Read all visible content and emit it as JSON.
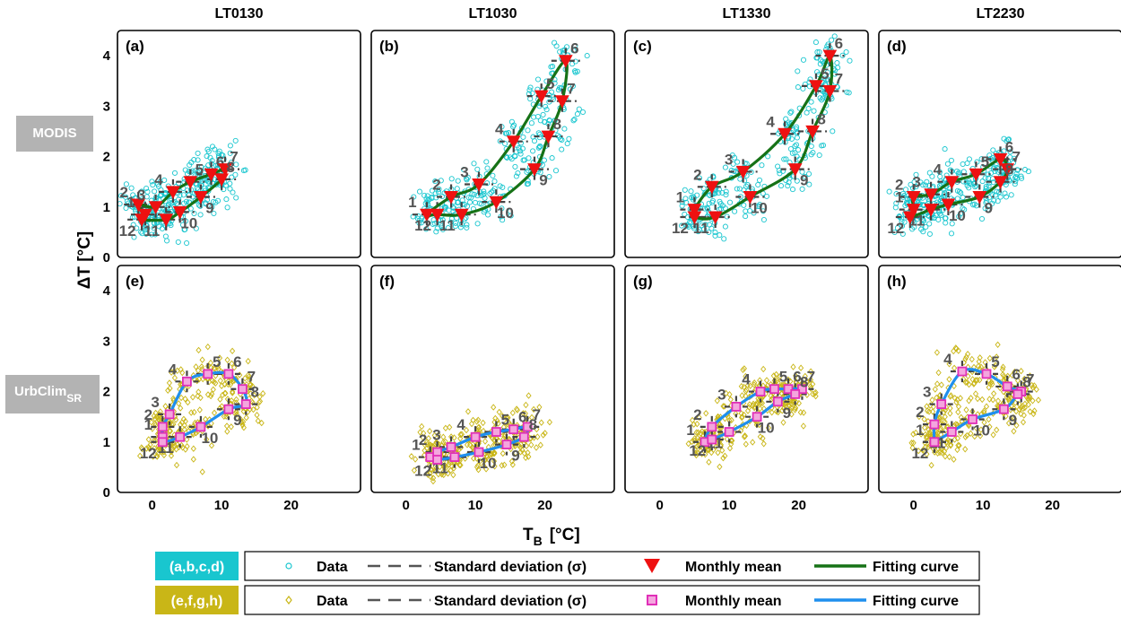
{
  "figure": {
    "column_titles": [
      "LT0130",
      "LT1030",
      "LT1330",
      "LT2230"
    ],
    "row_labels": [
      "MODIS",
      "UrbClim",
      "SR"
    ],
    "xlabel": "T",
    "xlabel_sub": "B",
    "xlabel_unit": "[°C]",
    "ylabel": "ΔT  [°C]",
    "x_ticks": [
      0,
      10,
      20
    ],
    "y_ticks": [
      0,
      1,
      2,
      3,
      4
    ],
    "panel_labels": [
      "(a)",
      "(b)",
      "(c)",
      "(d)",
      "(e)",
      "(f)",
      "(g)",
      "(h)"
    ]
  },
  "legend": {
    "rows": [
      {
        "group": "(a,b,c,d)",
        "group_color": "#19c6cf",
        "data": "Data",
        "std": "Standard deviation (σ)",
        "mean": "Monthly mean",
        "fit": "Fitting curve",
        "fit_color": "#167216",
        "mean_color": "#ee1111",
        "mean_marker": "triangle-down",
        "data_marker": "circle"
      },
      {
        "group": "(e,f,g,h)",
        "group_color": "#c9b617",
        "data": "Data",
        "std": "Standard deviation (σ)",
        "mean": "Monthly mean",
        "fit": "Fitting curve",
        "fit_color": "#1f8fee",
        "mean_color": "#f06dd1",
        "mean_marker": "square",
        "data_marker": "diamond"
      }
    ]
  },
  "chart_data": [
    {
      "panel": "(a)",
      "type": "scatter",
      "title": "LT0130",
      "source": "MODIS",
      "xlim": [
        -5,
        30
      ],
      "ylim": [
        0,
        4.5
      ],
      "monthly_mean": [
        {
          "month": 1,
          "x": -1.0,
          "y": 0.85
        },
        {
          "month": 2,
          "x": -2.0,
          "y": 1.05
        },
        {
          "month": 3,
          "x": 0.5,
          "y": 1.0
        },
        {
          "month": 4,
          "x": 3.0,
          "y": 1.3
        },
        {
          "month": 5,
          "x": 5.5,
          "y": 1.5
        },
        {
          "month": 6,
          "x": 8.5,
          "y": 1.65
        },
        {
          "month": 7,
          "x": 10.5,
          "y": 1.75
        },
        {
          "month": 8,
          "x": 10.0,
          "y": 1.55
        },
        {
          "month": 9,
          "x": 7.0,
          "y": 1.2
        },
        {
          "month": 10,
          "x": 4.0,
          "y": 0.9
        },
        {
          "month": 11,
          "x": 2.0,
          "y": 0.75
        },
        {
          "month": 12,
          "x": -1.5,
          "y": 0.75
        }
      ]
    },
    {
      "panel": "(b)",
      "type": "scatter",
      "title": "LT1030",
      "source": "MODIS",
      "xlim": [
        -5,
        30
      ],
      "ylim": [
        0,
        4.5
      ],
      "monthly_mean": [
        {
          "month": 1,
          "x": 3.0,
          "y": 0.85
        },
        {
          "month": 2,
          "x": 6.5,
          "y": 1.2
        },
        {
          "month": 3,
          "x": 10.5,
          "y": 1.45
        },
        {
          "month": 4,
          "x": 15.5,
          "y": 2.3
        },
        {
          "month": 5,
          "x": 19.5,
          "y": 3.2
        },
        {
          "month": 6,
          "x": 23.0,
          "y": 3.9
        },
        {
          "month": 7,
          "x": 22.5,
          "y": 3.1
        },
        {
          "month": 8,
          "x": 20.5,
          "y": 2.4
        },
        {
          "month": 9,
          "x": 18.5,
          "y": 1.75
        },
        {
          "month": 10,
          "x": 13.0,
          "y": 1.1
        },
        {
          "month": 11,
          "x": 8.0,
          "y": 0.85
        },
        {
          "month": 12,
          "x": 4.5,
          "y": 0.85
        }
      ]
    },
    {
      "panel": "(c)",
      "type": "scatter",
      "title": "LT1330",
      "source": "MODIS",
      "xlim": [
        -5,
        30
      ],
      "ylim": [
        0,
        4.5
      ],
      "monthly_mean": [
        {
          "month": 1,
          "x": 5.0,
          "y": 0.95
        },
        {
          "month": 2,
          "x": 7.5,
          "y": 1.4
        },
        {
          "month": 3,
          "x": 12.0,
          "y": 1.7
        },
        {
          "month": 4,
          "x": 18.0,
          "y": 2.45
        },
        {
          "month": 5,
          "x": 22.5,
          "y": 3.4
        },
        {
          "month": 6,
          "x": 24.5,
          "y": 4.0
        },
        {
          "month": 7,
          "x": 24.5,
          "y": 3.3
        },
        {
          "month": 8,
          "x": 22.0,
          "y": 2.5
        },
        {
          "month": 9,
          "x": 19.5,
          "y": 1.75
        },
        {
          "month": 10,
          "x": 13.0,
          "y": 1.2
        },
        {
          "month": 11,
          "x": 8.0,
          "y": 0.8
        },
        {
          "month": 12,
          "x": 5.0,
          "y": 0.8
        }
      ]
    },
    {
      "panel": "(d)",
      "type": "scatter",
      "title": "LT2230",
      "source": "MODIS",
      "xlim": [
        -5,
        30
      ],
      "ylim": [
        0,
        4.5
      ],
      "monthly_mean": [
        {
          "month": 1,
          "x": 0.0,
          "y": 0.95
        },
        {
          "month": 2,
          "x": 0.0,
          "y": 1.2
        },
        {
          "month": 3,
          "x": 2.5,
          "y": 1.25
        },
        {
          "month": 4,
          "x": 5.5,
          "y": 1.5
        },
        {
          "month": 5,
          "x": 9.0,
          "y": 1.65
        },
        {
          "month": 6,
          "x": 12.5,
          "y": 1.95
        },
        {
          "month": 7,
          "x": 13.5,
          "y": 1.75
        },
        {
          "month": 8,
          "x": 12.5,
          "y": 1.5
        },
        {
          "month": 9,
          "x": 9.5,
          "y": 1.2
        },
        {
          "month": 10,
          "x": 5.0,
          "y": 1.05
        },
        {
          "month": 11,
          "x": 2.5,
          "y": 0.95
        },
        {
          "month": 12,
          "x": -0.5,
          "y": 0.8
        }
      ]
    },
    {
      "panel": "(e)",
      "type": "scatter",
      "title": "LT0130",
      "source": "UrbClim",
      "xlim": [
        -5,
        30
      ],
      "ylim": [
        0,
        4.5
      ],
      "monthly_mean": [
        {
          "month": 1,
          "x": 1.5,
          "y": 1.1
        },
        {
          "month": 2,
          "x": 1.5,
          "y": 1.3
        },
        {
          "month": 3,
          "x": 2.5,
          "y": 1.55
        },
        {
          "month": 4,
          "x": 5.0,
          "y": 2.2
        },
        {
          "month": 5,
          "x": 8.0,
          "y": 2.35
        },
        {
          "month": 6,
          "x": 11.0,
          "y": 2.35
        },
        {
          "month": 7,
          "x": 13.0,
          "y": 2.05
        },
        {
          "month": 8,
          "x": 13.5,
          "y": 1.75
        },
        {
          "month": 9,
          "x": 11.0,
          "y": 1.65
        },
        {
          "month": 10,
          "x": 7.0,
          "y": 1.3
        },
        {
          "month": 11,
          "x": 4.0,
          "y": 1.1
        },
        {
          "month": 12,
          "x": 1.5,
          "y": 1.0
        }
      ]
    },
    {
      "panel": "(f)",
      "type": "scatter",
      "title": "LT1030",
      "source": "UrbClim",
      "xlim": [
        -5,
        30
      ],
      "ylim": [
        0,
        4.5
      ],
      "monthly_mean": [
        {
          "month": 1,
          "x": 3.5,
          "y": 0.7
        },
        {
          "month": 2,
          "x": 4.5,
          "y": 0.8
        },
        {
          "month": 3,
          "x": 6.5,
          "y": 0.9
        },
        {
          "month": 4,
          "x": 10.0,
          "y": 1.1
        },
        {
          "month": 5,
          "x": 13.0,
          "y": 1.2
        },
        {
          "month": 6,
          "x": 15.5,
          "y": 1.25
        },
        {
          "month": 7,
          "x": 17.5,
          "y": 1.3
        },
        {
          "month": 8,
          "x": 17.0,
          "y": 1.1
        },
        {
          "month": 9,
          "x": 14.5,
          "y": 0.95
        },
        {
          "month": 10,
          "x": 10.5,
          "y": 0.8
        },
        {
          "month": 11,
          "x": 7.0,
          "y": 0.7
        },
        {
          "month": 12,
          "x": 4.5,
          "y": 0.65
        }
      ]
    },
    {
      "panel": "(g)",
      "type": "scatter",
      "title": "LT1330",
      "source": "UrbClim",
      "xlim": [
        -5,
        30
      ],
      "ylim": [
        0,
        4.5
      ],
      "monthly_mean": [
        {
          "month": 1,
          "x": 6.5,
          "y": 1.0
        },
        {
          "month": 2,
          "x": 7.5,
          "y": 1.3
        },
        {
          "month": 3,
          "x": 11.0,
          "y": 1.7
        },
        {
          "month": 4,
          "x": 14.5,
          "y": 2.0
        },
        {
          "month": 5,
          "x": 16.5,
          "y": 2.05
        },
        {
          "month": 6,
          "x": 18.5,
          "y": 2.05
        },
        {
          "month": 7,
          "x": 20.5,
          "y": 2.05
        },
        {
          "month": 8,
          "x": 19.5,
          "y": 1.95
        },
        {
          "month": 9,
          "x": 17.0,
          "y": 1.8
        },
        {
          "month": 10,
          "x": 14.0,
          "y": 1.5
        },
        {
          "month": 11,
          "x": 10.0,
          "y": 1.2
        },
        {
          "month": 12,
          "x": 7.5,
          "y": 1.05
        }
      ]
    },
    {
      "panel": "(h)",
      "type": "scatter",
      "title": "LT2230",
      "source": "UrbClim",
      "xlim": [
        -5,
        30
      ],
      "ylim": [
        0,
        4.5
      ],
      "monthly_mean": [
        {
          "month": 1,
          "x": 3.0,
          "y": 1.0
        },
        {
          "month": 2,
          "x": 3.0,
          "y": 1.35
        },
        {
          "month": 3,
          "x": 4.0,
          "y": 1.75
        },
        {
          "month": 4,
          "x": 7.0,
          "y": 2.4
        },
        {
          "month": 5,
          "x": 10.5,
          "y": 2.35
        },
        {
          "month": 6,
          "x": 13.5,
          "y": 2.1
        },
        {
          "month": 7,
          "x": 15.5,
          "y": 2.0
        },
        {
          "month": 8,
          "x": 15.0,
          "y": 1.95
        },
        {
          "month": 9,
          "x": 13.0,
          "y": 1.65
        },
        {
          "month": 10,
          "x": 8.5,
          "y": 1.45
        },
        {
          "month": 11,
          "x": 5.5,
          "y": 1.2
        },
        {
          "month": 12,
          "x": 3.0,
          "y": 1.0
        }
      ]
    }
  ]
}
